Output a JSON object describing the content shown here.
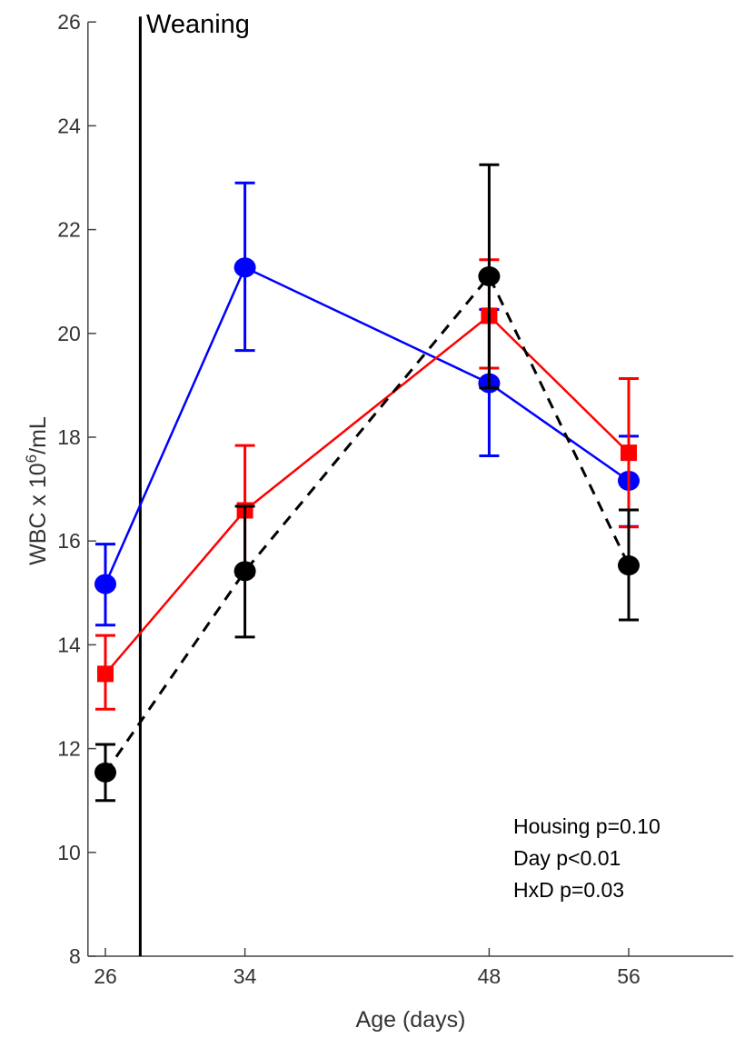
{
  "chart_data": {
    "type": "line",
    "title": "",
    "xlabel": "Age (days)",
    "ylabel_main": "WBC x 10",
    "ylabel_sup": "6",
    "ylabel_unit": "/mL",
    "xlim": [
      25,
      62
    ],
    "ylim": [
      8,
      26
    ],
    "xticks": [
      26,
      34,
      48,
      56
    ],
    "yticks": [
      8,
      10,
      12,
      14,
      16,
      18,
      20,
      22,
      24,
      26
    ],
    "grid": false,
    "x": [
      26,
      34,
      48,
      56
    ],
    "series": [
      {
        "color": "#0000ff",
        "marker": "circle",
        "line": "solid",
        "values": [
          15.17,
          21.27,
          19.04,
          17.16
        ],
        "err_low": [
          14.38,
          19.67,
          17.64,
          16.28
        ],
        "err_high": [
          15.94,
          22.9,
          20.46,
          18.02
        ]
      },
      {
        "color": "#ff0000",
        "marker": "square",
        "line": "solid",
        "values": [
          13.44,
          16.59,
          20.34,
          17.7
        ],
        "err_low": [
          12.76,
          15.34,
          19.33,
          16.27
        ],
        "err_high": [
          14.18,
          17.84,
          21.42,
          19.13
        ]
      },
      {
        "color": "#000000",
        "marker": "circle",
        "line": "dashed",
        "values": [
          11.54,
          15.42,
          21.1,
          15.53
        ],
        "err_low": [
          11.0,
          14.15,
          18.95,
          14.48
        ],
        "err_high": [
          12.08,
          16.67,
          23.25,
          16.6
        ]
      }
    ],
    "vline": {
      "x": 28,
      "label": "Weaning"
    },
    "annotations": [
      "Housing p=0.10",
      "Day p<0.01",
      "HxD p=0.03"
    ]
  }
}
